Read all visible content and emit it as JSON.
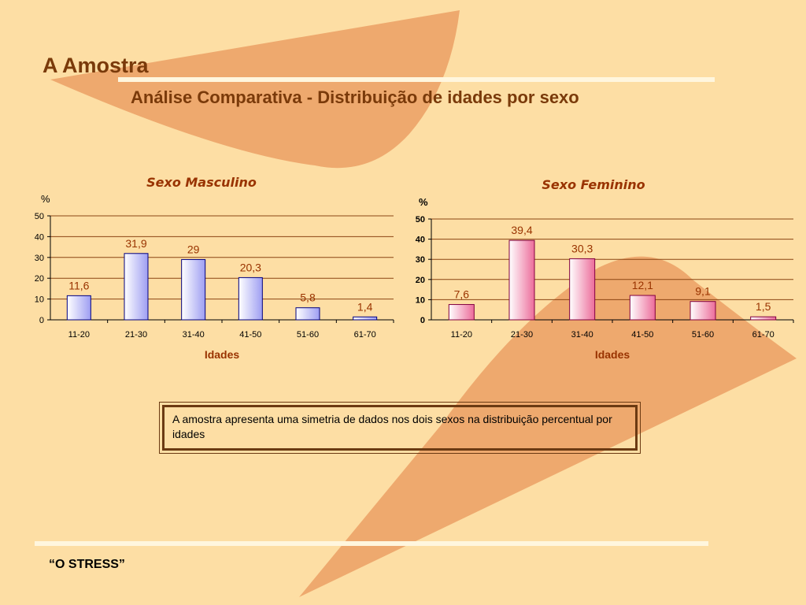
{
  "slide": {
    "title": "A Amostra",
    "subtitle": "Análise Comparativa  - Distribuição de idades por sexo",
    "note": "A amostra apresenta uma simetria de dados nos dois sexos na distribuição percentual por idades",
    "footer": "“O STRESS”"
  },
  "colors": {
    "background": "#FDDEA4",
    "decorative_shape": "#EEA96E",
    "accent_line": "#FFF6DE",
    "heading": "#7A3A0A",
    "chart_label": "#993300",
    "male_bar_gradient": [
      "#FFFFFF",
      "#9E9EF2"
    ],
    "female_bar_gradient": [
      "#FFFFFF",
      "#EC6C9A"
    ]
  },
  "chart_data": [
    {
      "type": "bar",
      "title": "Sexo Masculino",
      "ylabel": "%",
      "xlabel": "Idades",
      "categories": [
        "11-20",
        "21-30",
        "31-40",
        "41-50",
        "51-60",
        "61-70"
      ],
      "values": [
        11.6,
        31.9,
        29,
        20.3,
        5.8,
        1.4
      ],
      "data_labels": [
        "11,6",
        "31,9",
        "29",
        "20,3",
        "5,8",
        "1,4"
      ],
      "yticks": [
        "0",
        "10",
        "20",
        "30",
        "40",
        "50"
      ],
      "ylim": [
        0,
        50
      ],
      "grid": true,
      "legend": "none"
    },
    {
      "type": "bar",
      "title": "Sexo Feminino",
      "ylabel": "%",
      "xlabel": "Idades",
      "categories": [
        "11-20",
        "21-30",
        "31-40",
        "41-50",
        "51-60",
        "61-70"
      ],
      "values": [
        7.6,
        39.4,
        30.3,
        12.1,
        9.1,
        1.5
      ],
      "data_labels": [
        "7,6",
        "39,4",
        "30,3",
        "12,1",
        "9,1",
        "1,5"
      ],
      "yticks": [
        "0",
        "10",
        "20",
        "30",
        "40",
        "50"
      ],
      "ylim": [
        0,
        50
      ],
      "grid": true,
      "legend": "none"
    }
  ]
}
